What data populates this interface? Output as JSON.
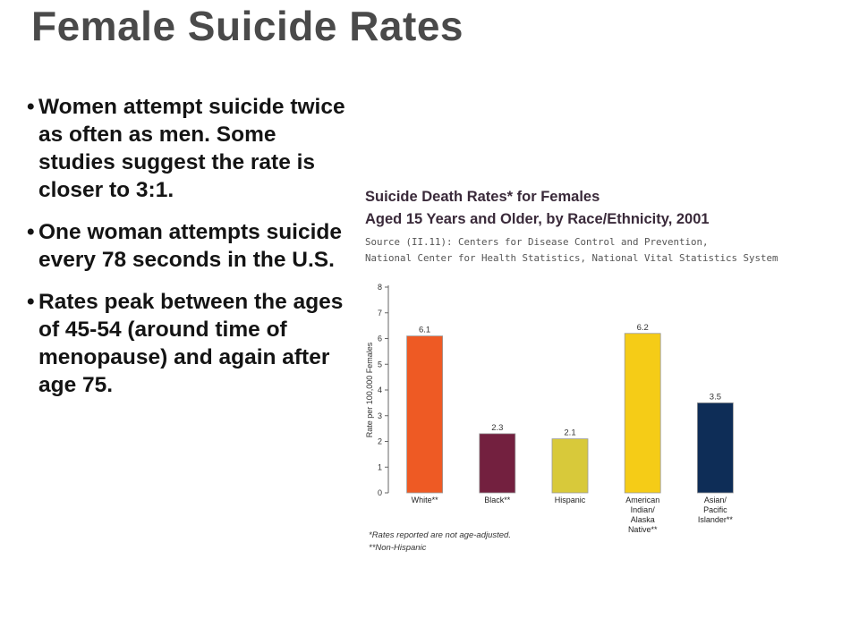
{
  "slide": {
    "title": "Female Suicide Rates",
    "bullets": [
      "Women attempt suicide twice as often as men.  Some studies suggest the rate is closer to 3:1.",
      "One woman attempts suicide every 78 seconds in the U.S.",
      "Rates peak between the ages of 45-54 (around time of menopause) and again after age 75."
    ],
    "bullet_marker": "•"
  },
  "chart_data": {
    "type": "bar",
    "title": "Suicide Death Rates* for Females",
    "subtitle": "Aged 15 Years and Older, by Race/Ethnicity, 2001",
    "source_line1": "Source (II.11): Centers for Disease Control and Prevention,",
    "source_line2": "National Center for Health Statistics, National Vital Statistics System",
    "ylabel": "Rate per 100,000 Females",
    "xlabel": "",
    "ylim": [
      0,
      8
    ],
    "yticks": [
      0,
      1,
      2,
      3,
      4,
      5,
      6,
      7,
      8
    ],
    "categories": [
      [
        "White**"
      ],
      [
        "Black**"
      ],
      [
        "Hispanic"
      ],
      [
        "American",
        "Indian/",
        "Alaska",
        "Native**"
      ],
      [
        "Asian/",
        "Pacific",
        "Islander**"
      ]
    ],
    "values": [
      6.1,
      2.3,
      2.1,
      6.2,
      3.5
    ],
    "value_labels": [
      "6.1",
      "2.3",
      "2.1",
      "6.2",
      "3.5"
    ],
    "colors": [
      "#ee5a24",
      "#73203f",
      "#d8c93a",
      "#f5cc17",
      "#0e2d57"
    ],
    "grid": false,
    "footnotes": [
      "*Rates reported are not age-adjusted.",
      "**Non-Hispanic"
    ]
  }
}
